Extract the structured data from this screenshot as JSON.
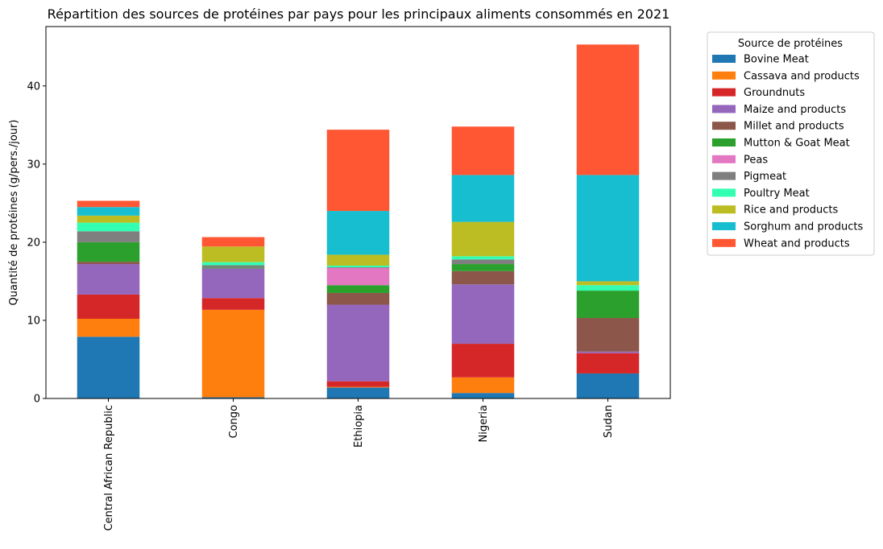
{
  "chart_data": {
    "type": "bar",
    "stacked": true,
    "title": "Répartition des sources de protéines par pays pour les principaux aliments consommés en 2021",
    "xlabel": "",
    "ylabel": "Quantité de protéines (g/pers./jour)",
    "ylim": [
      0,
      47.6
    ],
    "yticks": [
      0,
      10,
      20,
      30,
      40
    ],
    "grid": false,
    "legend": {
      "title": "Source de protéines",
      "placement": "outside-right"
    },
    "categories": [
      "Central African Republic",
      "Congo",
      "Ethiopia",
      "Nigeria",
      "Sudan"
    ],
    "series": [
      {
        "name": "Bovine Meat",
        "color": "#1f77b4",
        "values": [
          7.9,
          0.15,
          1.4,
          0.7,
          3.2
        ]
      },
      {
        "name": "Cassava and products",
        "color": "#ff7f0e",
        "values": [
          2.3,
          11.2,
          0.1,
          2.0,
          0.0
        ]
      },
      {
        "name": "Groundnuts",
        "color": "#d62728",
        "values": [
          3.1,
          1.5,
          0.7,
          4.3,
          2.6
        ]
      },
      {
        "name": "Maize and products",
        "color": "#9467bd",
        "values": [
          3.9,
          3.8,
          9.8,
          7.6,
          0.2
        ]
      },
      {
        "name": "Millet and products",
        "color": "#8c564b",
        "values": [
          0.3,
          0.0,
          1.5,
          1.7,
          4.3
        ]
      },
      {
        "name": "Mutton & Goat Meat",
        "color": "#2ca02c",
        "values": [
          2.5,
          0.1,
          1.0,
          0.9,
          3.5
        ]
      },
      {
        "name": "Peas",
        "color": "#e377c2",
        "values": [
          0.0,
          0.0,
          2.2,
          0.0,
          0.0
        ]
      },
      {
        "name": "Pigmeat",
        "color": "#7f7f7f",
        "values": [
          1.4,
          0.3,
          0.1,
          0.6,
          0.0
        ]
      },
      {
        "name": "Poultry Meat",
        "color": "#33ffb3",
        "values": [
          1.1,
          0.4,
          0.2,
          0.4,
          0.7
        ]
      },
      {
        "name": "Rice and products",
        "color": "#bcbd22",
        "values": [
          0.9,
          2.0,
          1.4,
          4.4,
          0.5
        ]
      },
      {
        "name": "Sorghum and products",
        "color": "#17becf",
        "values": [
          1.1,
          0.0,
          5.6,
          6.0,
          13.6
        ]
      },
      {
        "name": "Wheat and products",
        "color": "#ff5733",
        "values": [
          0.8,
          1.2,
          10.4,
          6.2,
          16.7
        ]
      }
    ]
  }
}
